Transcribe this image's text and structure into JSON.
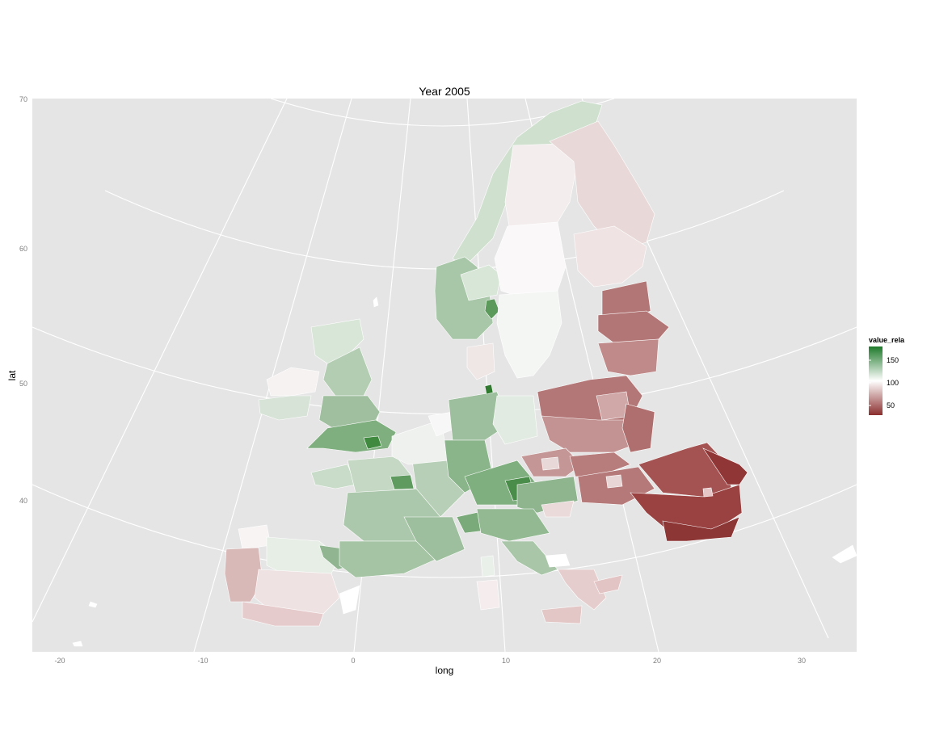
{
  "chart_data": {
    "type": "choropleth-map",
    "title": "Year 2005",
    "xlabel": "long",
    "ylabel": "lat",
    "x_ticks": [
      -20,
      -10,
      0,
      10,
      20,
      30
    ],
    "y_ticks": [
      40,
      50,
      60,
      70
    ],
    "xlim": [
      -22,
      33
    ],
    "ylim": [
      34,
      70
    ],
    "grid": true,
    "legend": {
      "title": "value_rela",
      "placement": "right",
      "breaks": [
        150,
        100,
        50
      ],
      "low_color": "#8b2e2e",
      "mid_color": "#ffffff",
      "high_color": "#1e7a2a"
    }
  }
}
